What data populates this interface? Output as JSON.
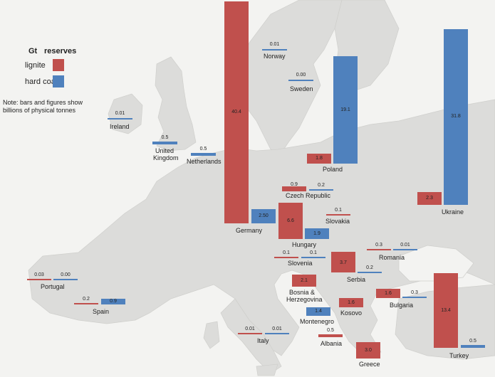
{
  "legend": {
    "unit": "Gt",
    "title": "reserves",
    "lignite_label": "lignite",
    "hardcoal_label": "hard coal",
    "note_line1": "Note: bars and figures show",
    "note_line2": "billions of physical tonnes"
  },
  "colors": {
    "lignite": "#c0504d",
    "hard_coal": "#4f81bd",
    "land": "#dcdcda",
    "sea": "#f3f3f1"
  },
  "countries": [
    {
      "name": "Norway",
      "lignite": null,
      "hard_coal": null,
      "labels": [
        "Norway"
      ],
      "values_text": {
        "single": "0.01"
      }
    },
    {
      "name": "Sweden",
      "lignite": null,
      "hard_coal": null,
      "labels": [
        "Sweden"
      ],
      "values_text": {
        "single": "0.00"
      }
    },
    {
      "name": "Ireland",
      "labels": [
        "Ireland"
      ],
      "values_text": {
        "single": "0.01"
      }
    },
    {
      "name": "United Kingdom",
      "labels": [
        "United",
        "Kingdom"
      ],
      "values_text": {
        "single": "0.5"
      }
    },
    {
      "name": "Netherlands",
      "labels": [
        "Netherlands"
      ],
      "values_text": {
        "single": "0.5"
      }
    },
    {
      "name": "Germany",
      "labels": [
        "Germany"
      ],
      "values_text": {
        "lignite": "40.4",
        "hard_coal": "2.50"
      }
    },
    {
      "name": "Poland",
      "labels": [
        "Poland"
      ],
      "values_text": {
        "lignite": "1.8",
        "hard_coal": "19.1"
      }
    },
    {
      "name": "Ukraine",
      "labels": [
        "Ukraine"
      ],
      "values_text": {
        "lignite": "2.3",
        "hard_coal": "31.8"
      }
    },
    {
      "name": "Czech Republic",
      "labels": [
        "Czech Republic"
      ],
      "values_text": {
        "lignite": "0.9",
        "hard_coal": "0.2"
      }
    },
    {
      "name": "Slovakia",
      "labels": [
        "Slovakia"
      ],
      "values_text": {
        "lignite": "0.1"
      }
    },
    {
      "name": "Hungary",
      "labels": [
        "Hungary"
      ],
      "values_text": {
        "lignite": "6.6",
        "hard_coal": "1.9"
      }
    },
    {
      "name": "Slovenia",
      "labels": [
        "Slovenia"
      ],
      "values_text": {
        "lignite": "0.1",
        "hard_coal": "0.1"
      }
    },
    {
      "name": "Romania",
      "labels": [
        "Romania"
      ],
      "values_text": {
        "lignite": "0.3",
        "hard_coal": "0.01"
      }
    },
    {
      "name": "Serbia",
      "labels": [
        "Serbia"
      ],
      "values_text": {
        "lignite": "3.7",
        "hard_coal": "0.2"
      }
    },
    {
      "name": "Portugal",
      "labels": [
        "Portugal"
      ],
      "values_text": {
        "lignite": "0.03",
        "hard_coal": "0.00"
      }
    },
    {
      "name": "Bosnia & Herzegovina",
      "labels": [
        "Bosnia &",
        "Herzegovina"
      ],
      "values_text": {
        "lignite": "2.1"
      }
    },
    {
      "name": "Spain",
      "labels": [
        "Spain"
      ],
      "values_text": {
        "lignite": "0.2",
        "hard_coal": "0.9"
      }
    },
    {
      "name": "Kosovo",
      "labels": [
        "Kosovo"
      ],
      "values_text": {
        "lignite": "1.6"
      }
    },
    {
      "name": "Bulgaria",
      "labels": [
        "Bulgaria"
      ],
      "values_text": {
        "lignite": "1.6",
        "hard_coal": "0.3"
      }
    },
    {
      "name": "Montenegro",
      "labels": [
        "Montenegro"
      ],
      "values_text": {
        "hard_coal": "1.4"
      }
    },
    {
      "name": "Italy",
      "labels": [
        "Italy"
      ],
      "values_text": {
        "lignite": "0.01",
        "hard_coal": "0.01"
      }
    },
    {
      "name": "Albania",
      "labels": [
        "Albania"
      ],
      "values_text": {
        "lignite": "0.5"
      }
    },
    {
      "name": "Turkey",
      "labels": [
        "Turkey"
      ],
      "values_text": {
        "lignite": "13.4",
        "hard_coal": "0.5"
      }
    },
    {
      "name": "Greece",
      "labels": [
        "Greece"
      ],
      "values_text": {
        "lignite": "3.0"
      }
    }
  ]
}
